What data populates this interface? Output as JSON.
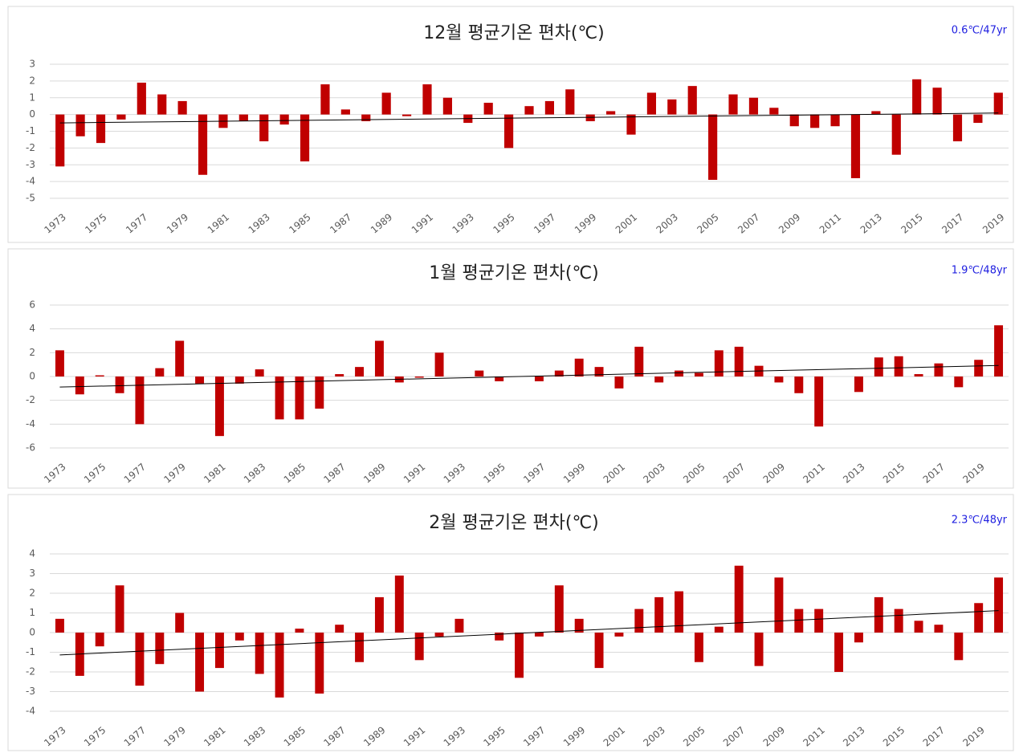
{
  "chart_data": [
    {
      "type": "bar",
      "title": "12월 평균기온 편차(℃)",
      "annotation": "0.6℃/47yr",
      "color": "#c00000",
      "grid": true,
      "trendline": "linear",
      "ylim": [
        -5,
        3
      ],
      "yticks": [
        -5,
        -4,
        -3,
        -2,
        -1,
        0,
        1,
        2,
        3
      ],
      "categories": [
        "1973",
        null,
        "1975",
        null,
        "1977",
        null,
        "1979",
        null,
        "1981",
        null,
        "1983",
        null,
        "1985",
        null,
        "1987",
        null,
        "1989",
        null,
        "1991",
        null,
        "1993",
        null,
        "1995",
        null,
        "1997",
        null,
        "1999",
        null,
        "2001",
        null,
        "2003",
        null,
        "2005",
        null,
        "2007",
        null,
        "2009",
        null,
        "2011",
        null,
        "2013",
        null,
        "2015",
        null,
        "2017",
        null,
        "2019"
      ],
      "values": [
        -3.1,
        -1.3,
        -1.7,
        -0.3,
        1.9,
        1.2,
        0.8,
        -3.6,
        -0.8,
        -0.4,
        -1.6,
        -0.6,
        -2.8,
        1.8,
        0.3,
        -0.4,
        1.3,
        -0.1,
        1.8,
        1.0,
        -0.5,
        0.7,
        -2.0,
        0.5,
        0.8,
        1.5,
        -0.4,
        0.2,
        -1.2,
        1.3,
        0.9,
        1.7,
        -3.9,
        1.2,
        1.0,
        0.4,
        -0.7,
        -0.8,
        -0.7,
        -3.8,
        0.2,
        -2.4,
        2.1,
        1.6,
        -1.6,
        -0.5,
        1.3
      ]
    },
    {
      "type": "bar",
      "title": "1월 평균기온 편차(℃)",
      "annotation": "1.9℃/48yr",
      "color": "#c00000",
      "grid": true,
      "trendline": "linear",
      "ylim": [
        -6,
        6
      ],
      "yticks": [
        -6,
        -4,
        -2,
        0,
        2,
        4,
        6
      ],
      "categories": [
        "1973",
        null,
        "1975",
        null,
        "1977",
        null,
        "1979",
        null,
        "1981",
        null,
        "1983",
        null,
        "1985",
        null,
        "1987",
        null,
        "1989",
        null,
        "1991",
        null,
        "1993",
        null,
        "1995",
        null,
        "1997",
        null,
        "1999",
        null,
        "2001",
        null,
        "2003",
        null,
        "2005",
        null,
        "2007",
        null,
        "2009",
        null,
        "2011",
        null,
        "2013",
        null,
        "2015",
        null,
        "2017",
        null,
        "2019",
        null
      ],
      "values": [
        2.2,
        -1.5,
        0.1,
        -1.4,
        -4.0,
        0.7,
        3.0,
        -0.6,
        -5.0,
        -0.6,
        0.6,
        -3.6,
        -3.6,
        -2.7,
        0.2,
        0.8,
        3.0,
        -0.5,
        -0.1,
        2.0,
        0.0,
        0.5,
        -0.4,
        0.0,
        -0.4,
        0.5,
        1.5,
        0.8,
        -1.0,
        2.5,
        -0.5,
        0.5,
        0.3,
        2.2,
        2.5,
        0.9,
        -0.5,
        -1.4,
        -4.2,
        0.0,
        -1.3,
        1.6,
        1.7,
        0.2,
        1.1,
        -0.9,
        1.4,
        4.3
      ]
    },
    {
      "type": "bar",
      "title": "2월 평균기온 편차(℃)",
      "annotation": "2.3℃/48yr",
      "color": "#c00000",
      "grid": true,
      "trendline": "linear",
      "ylim": [
        -4,
        4
      ],
      "yticks": [
        -4,
        -3,
        -2,
        -1,
        0,
        1,
        2,
        3,
        4
      ],
      "categories": [
        "1973",
        null,
        "1975",
        null,
        "1977",
        null,
        "1979",
        null,
        "1981",
        null,
        "1983",
        null,
        "1985",
        null,
        "1987",
        null,
        "1989",
        null,
        "1991",
        null,
        "1993",
        null,
        "1995",
        null,
        "1997",
        null,
        "1999",
        null,
        "2001",
        null,
        "2003",
        null,
        "2005",
        null,
        "2007",
        null,
        "2009",
        null,
        "2011",
        null,
        "2013",
        null,
        "2015",
        null,
        "2017",
        null,
        "2019",
        null
      ],
      "values": [
        0.7,
        -2.2,
        -0.7,
        2.4,
        -2.7,
        -1.6,
        1.0,
        -3.0,
        -1.8,
        -0.4,
        -2.1,
        -3.3,
        0.2,
        -3.1,
        0.4,
        -1.5,
        1.8,
        2.9,
        -1.4,
        -0.2,
        0.7,
        0.0,
        -0.4,
        -2.3,
        -0.2,
        2.4,
        0.7,
        -1.8,
        -0.2,
        1.2,
        1.8,
        2.1,
        -1.5,
        0.3,
        3.4,
        -1.7,
        2.8,
        1.2,
        1.2,
        -2.0,
        -0.5,
        1.8,
        1.2,
        0.6,
        0.4,
        -1.4,
        1.5,
        2.8
      ]
    }
  ]
}
